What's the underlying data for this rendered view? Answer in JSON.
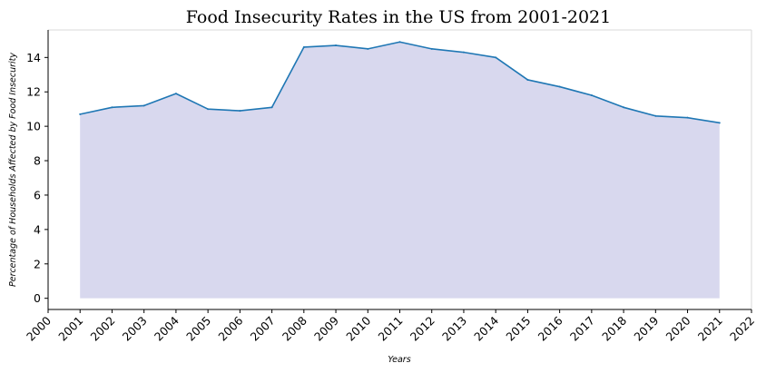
{
  "chart_data": {
    "type": "area",
    "title": "Food Insecurity Rates in the US from 2001-2021",
    "xlabel": "Years",
    "ylabel": "Percentage of Households Affected by Food Insecurity",
    "x": [
      2001,
      2002,
      2003,
      2004,
      2005,
      2006,
      2007,
      2008,
      2009,
      2010,
      2011,
      2012,
      2013,
      2014,
      2015,
      2016,
      2017,
      2018,
      2019,
      2020,
      2021
    ],
    "series": [
      {
        "values": [
          10.7,
          11.1,
          11.2,
          11.9,
          11.0,
          10.9,
          11.1,
          14.6,
          14.7,
          14.5,
          14.9,
          14.5,
          14.3,
          14.0,
          12.7,
          12.3,
          11.8,
          11.1,
          10.6,
          10.5,
          10.2
        ],
        "line_color": "#1f77b4",
        "fill_color": "#d8d8ee"
      }
    ],
    "xlim": [
      2000,
      2022
    ],
    "ylim": [
      -0.65,
      15.6
    ],
    "x_ticks": [
      "2000",
      "2001",
      "2002",
      "2003",
      "2004",
      "2005",
      "2006",
      "2007",
      "2008",
      "2009",
      "2010",
      "2011",
      "2012",
      "2013",
      "2014",
      "2015",
      "2016",
      "2017",
      "2018",
      "2019",
      "2020",
      "2021",
      "2022"
    ],
    "y_ticks": [
      "0",
      "2",
      "4",
      "6",
      "8",
      "10",
      "12",
      "14"
    ],
    "grid": false,
    "legend": "none"
  }
}
